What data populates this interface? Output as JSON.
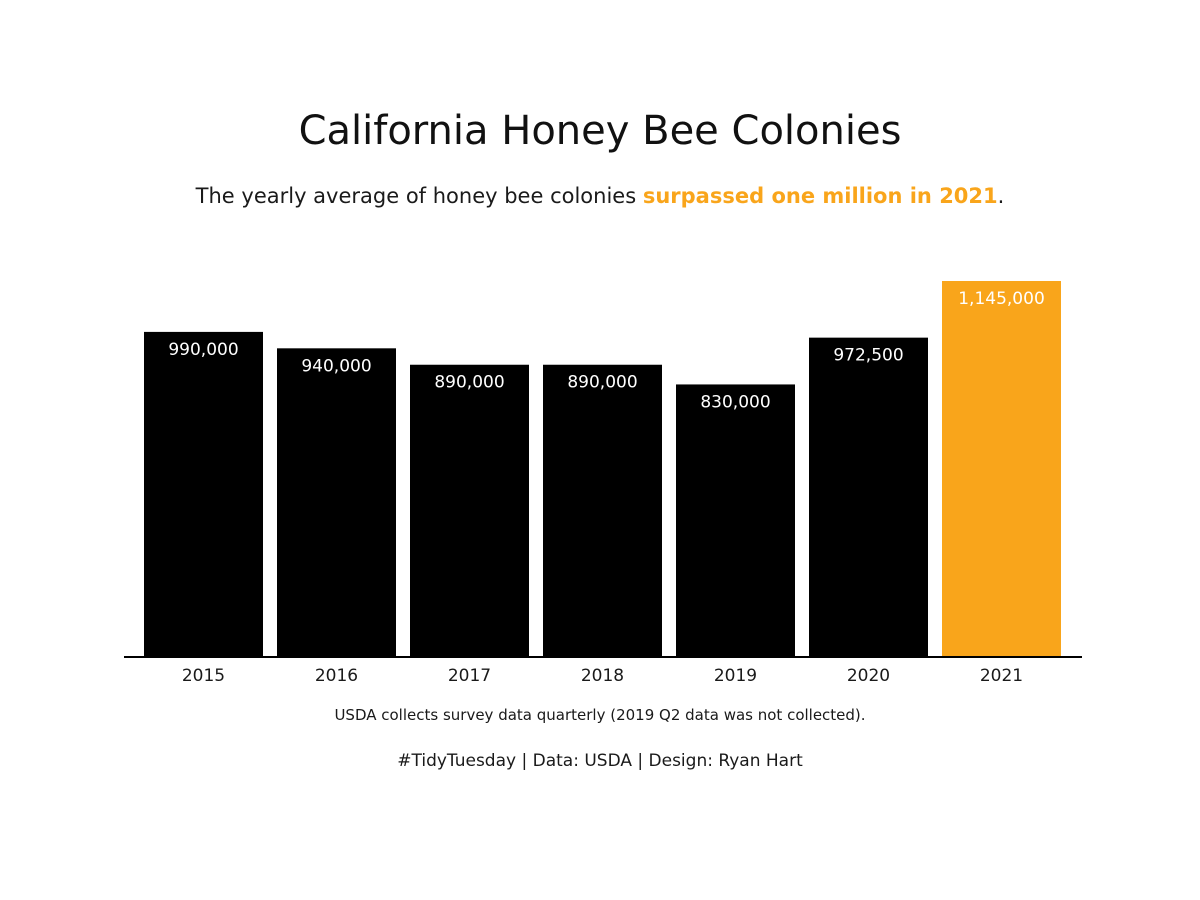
{
  "header": {
    "title": "California Honey Bee Colonies",
    "subtitle_prefix": "The yearly average of honey bee colonies ",
    "subtitle_highlight": "surpassed one million in 2021",
    "subtitle_suffix": "."
  },
  "footer": {
    "note": "USDA collects survey data quarterly (2019 Q2 data was not collected).",
    "credits": "#TidyTuesday | Data: USDA | Design: Ryan Hart"
  },
  "colors": {
    "bar_default": "#000000",
    "bar_highlight": "#f9a51b",
    "label_text": "#ffffff",
    "axis_line": "#000000",
    "tick_text": "#1a1a1a"
  },
  "chart_data": {
    "type": "bar",
    "title": "California Honey Bee Colonies",
    "xlabel": "",
    "ylabel": "",
    "categories": [
      "2015",
      "2016",
      "2017",
      "2018",
      "2019",
      "2020",
      "2021"
    ],
    "values": [
      990000,
      940000,
      890000,
      890000,
      830000,
      972500,
      1145000
    ],
    "data_labels": [
      "990,000",
      "940,000",
      "890,000",
      "890,000",
      "830,000",
      "972,500",
      "1,145,000"
    ],
    "highlight_category": "2021",
    "ylim": [
      0,
      1145000
    ],
    "grid": false,
    "legend": "none"
  }
}
